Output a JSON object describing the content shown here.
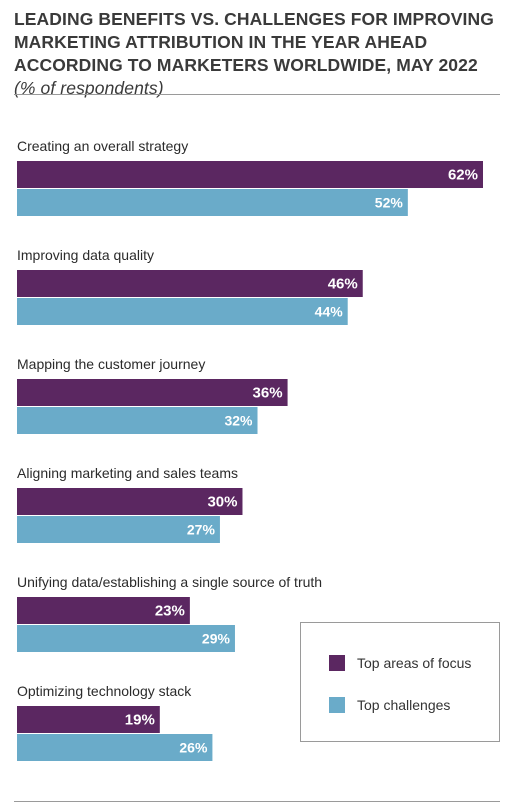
{
  "title": {
    "main": "LEADING BENEFITS VS. CHALLENGES FOR IMPROVING MARKETING ATTRIBUTION IN THE YEAR AHEAD ACCORDING TO MARKETERS WORLDWIDE, MAY 2022",
    "sub": "(% of respondents)"
  },
  "colors": {
    "focus": "#5b2761",
    "challenges": "#6aabc9"
  },
  "chart_data": {
    "type": "bar",
    "orientation": "horizontal",
    "categories": [
      "Creating an overall strategy",
      "Improving data quality",
      "Mapping the customer journey",
      "Aligning marketing and sales teams",
      "Unifying data/establishing a single source of truth",
      "Optimizing technology stack"
    ],
    "series": [
      {
        "name": "Top areas of focus",
        "values": [
          62,
          46,
          36,
          30,
          23,
          19
        ],
        "labels": [
          "62%",
          "46%",
          "36%",
          "30%",
          "23%",
          "19%"
        ]
      },
      {
        "name": "Top challenges",
        "values": [
          52,
          44,
          32,
          27,
          29,
          26
        ],
        "labels": [
          "52%",
          "44%",
          "32%",
          "27%",
          "29%",
          "26%"
        ]
      }
    ],
    "xlim": [
      0,
      62
    ],
    "legend": "bottom-right",
    "grid": false
  }
}
